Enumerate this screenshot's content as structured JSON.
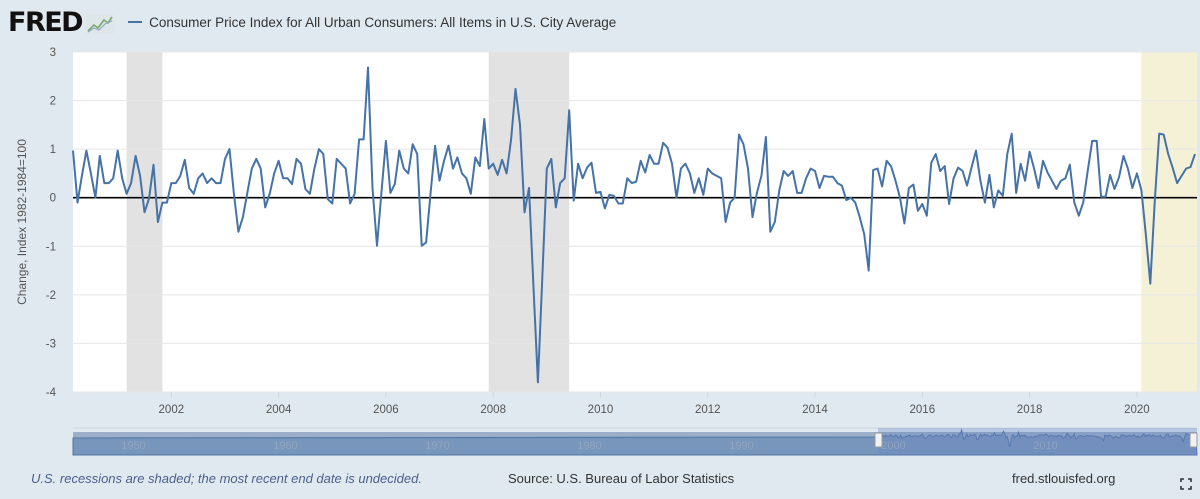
{
  "header": {
    "logo_text": "FRED",
    "legend_label": "Consumer Price Index for All Urban Consumers: All Items in U.S. City Average",
    "series_color": "#4572a7"
  },
  "footer": {
    "note": "U.S. recessions are shaded; the most recent end date is undecided.",
    "source": "Source: U.S. Bureau of Labor Statistics",
    "url": "fred.stlouisfed.org",
    "fullscreen_icon": "fullscreen-icon"
  },
  "chart_data": {
    "type": "line",
    "title": "Consumer Price Index for All Urban Consumers: All Items in U.S. City Average",
    "ylabel": "Change, Index 1982-1984=100",
    "xlabel": "",
    "frequency": "monthly",
    "xlim": [
      "2000-03",
      "2021-02"
    ],
    "ylim": [
      -4,
      3
    ],
    "yticks": [
      "3",
      "2",
      "1",
      "0",
      "-1",
      "-2",
      "-3",
      "-4"
    ],
    "xticks": [
      "2002",
      "2004",
      "2006",
      "2008",
      "2010",
      "2012",
      "2014",
      "2016",
      "2018",
      "2020"
    ],
    "grid": "horizontal",
    "values_by_year": {
      "2000": [
        0.97,
        -0.1,
        0.45,
        0.97,
        0.5,
        0.0,
        0.86,
        0.3,
        0.3,
        0.4
      ],
      "2001": [
        0.97,
        0.4,
        0.08,
        0.3,
        0.86,
        0.45,
        -0.3,
        -0.02,
        0.68,
        -0.5,
        -0.1,
        -0.1
      ],
      "2002": [
        0.3,
        0.3,
        0.45,
        0.78,
        0.2,
        0.08,
        0.4,
        0.5,
        0.3,
        0.4,
        0.3,
        0.3
      ],
      "2003": [
        0.8,
        1.0,
        0.08,
        -0.7,
        -0.4,
        0.1,
        0.6,
        0.8,
        0.6,
        -0.2,
        0.08,
        0.5
      ],
      "2004": [
        0.76,
        0.4,
        0.4,
        0.28,
        0.8,
        0.7,
        0.18,
        0.08,
        0.6,
        1.0,
        0.9,
        -0.03
      ],
      "2005": [
        -0.12,
        0.8,
        0.7,
        0.6,
        -0.12,
        0.08,
        1.2,
        1.2,
        2.68,
        0.2,
        -0.99,
        0.1
      ],
      "2006": [
        1.17,
        0.1,
        0.28,
        0.97,
        0.6,
        0.5,
        1.1,
        0.9,
        -0.99,
        -0.92,
        0.1,
        1.07
      ],
      "2007": [
        0.35,
        0.76,
        1.07,
        0.6,
        0.83,
        0.5,
        0.4,
        0.08,
        0.83,
        0.65,
        1.62,
        0.6
      ],
      "2008": [
        0.7,
        0.47,
        0.78,
        0.5,
        1.2,
        2.24,
        1.5,
        -0.3,
        0.2,
        -1.8,
        -3.8,
        -1.6
      ],
      "2009": [
        0.6,
        0.8,
        -0.2,
        0.3,
        0.4,
        1.8,
        -0.06,
        0.7,
        0.4,
        0.62,
        0.72,
        0.1
      ],
      "2010": [
        0.12,
        -0.22,
        0.06,
        0.04,
        -0.12,
        -0.12,
        0.4,
        0.3,
        0.33,
        0.76,
        0.52,
        0.88
      ],
      "2011": [
        0.7,
        0.7,
        1.13,
        1.03,
        0.7,
        0.0,
        0.6,
        0.7,
        0.5,
        0.1,
        0.4,
        0.06
      ],
      "2012": [
        0.6,
        0.5,
        0.45,
        0.4,
        -0.5,
        -0.1,
        0.0,
        1.3,
        1.1,
        0.6,
        -0.4,
        0.1
      ],
      "2013": [
        0.45,
        1.25,
        -0.7,
        -0.5,
        0.15,
        0.55,
        0.45,
        0.55,
        0.1,
        0.1,
        0.4,
        0.6
      ],
      "2014": [
        0.55,
        0.2,
        0.45,
        0.43,
        0.43,
        0.3,
        0.25,
        -0.05,
        0.0,
        -0.1,
        -0.4,
        -0.75
      ],
      "2015": [
        -1.5,
        0.57,
        0.6,
        0.23,
        0.76,
        0.65,
        0.35,
        0.0,
        -0.53,
        0.2,
        0.27,
        -0.27
      ],
      "2016": [
        -0.13,
        -0.37,
        0.72,
        0.9,
        0.55,
        0.65,
        -0.13,
        0.4,
        0.62,
        0.55,
        0.25,
        0.62
      ],
      "2017": [
        0.97,
        0.35,
        -0.1,
        0.47,
        -0.2,
        0.15,
        0.04,
        0.9,
        1.32,
        0.1,
        0.7,
        0.35
      ],
      "2018": [
        0.95,
        0.6,
        0.2,
        0.76,
        0.52,
        0.35,
        0.18,
        0.35,
        0.4,
        0.68,
        -0.1,
        -0.37
      ],
      "2019": [
        -0.1,
        0.55,
        1.17,
        1.17,
        0.02,
        0.02,
        0.47,
        0.18,
        0.42,
        0.86,
        0.6,
        0.2
      ],
      "2020": [
        0.5,
        0.15,
        -0.75,
        -1.77,
        -0.06,
        1.32,
        1.3,
        0.9,
        0.62,
        0.3,
        0.45,
        0.6
      ],
      "2021": [
        0.63,
        0.9
      ]
    },
    "zero_line": true,
    "recessions": [
      {
        "start": "2001-03",
        "end": "2001-11",
        "color": "#e2e2e2"
      },
      {
        "start": "2007-12",
        "end": "2009-06",
        "color": "#e2e2e2"
      },
      {
        "start": "2020-02",
        "end": "undecided",
        "color": "#f4f1d7"
      }
    ],
    "navigator": {
      "ticks": [
        "1950",
        "1960",
        "1970",
        "1980",
        "1990",
        "2000",
        "2010"
      ],
      "selected_range": [
        "2000-03",
        "2021-02"
      ]
    }
  }
}
